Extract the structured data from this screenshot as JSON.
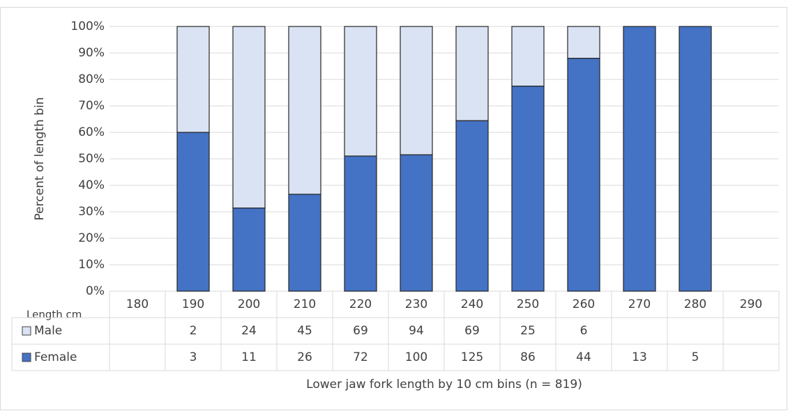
{
  "chart_data": {
    "type": "bar",
    "stacking": "percent",
    "ylabel": "Percent of length bin",
    "xlabel": "Lower jaw fork length by 10 cm bins  (n = 819)",
    "table_header": "Length cm",
    "categories": [
      "180",
      "190",
      "200",
      "210",
      "220",
      "230",
      "240",
      "250",
      "260",
      "270",
      "280",
      "290"
    ],
    "series": [
      {
        "name": "Male",
        "color": "#dae3f3",
        "values": [
          null,
          2,
          24,
          45,
          69,
          94,
          69,
          25,
          6,
          null,
          null,
          null
        ]
      },
      {
        "name": "Female",
        "color": "#4472c4",
        "values": [
          null,
          3,
          11,
          26,
          72,
          100,
          125,
          86,
          44,
          13,
          5,
          null
        ]
      }
    ],
    "ylim": [
      0,
      100
    ],
    "yticks": [
      {
        "value": 0,
        "label": "0%"
      },
      {
        "value": 10,
        "label": "10%"
      },
      {
        "value": 20,
        "label": "20%"
      },
      {
        "value": 30,
        "label": "30%"
      },
      {
        "value": 40,
        "label": "40%"
      },
      {
        "value": 50,
        "label": "50%"
      },
      {
        "value": 60,
        "label": "60%"
      },
      {
        "value": 70,
        "label": "70%"
      },
      {
        "value": 80,
        "label": "80%"
      },
      {
        "value": 90,
        "label": "90%"
      },
      {
        "value": 100,
        "label": "100%"
      }
    ],
    "grid": true
  }
}
